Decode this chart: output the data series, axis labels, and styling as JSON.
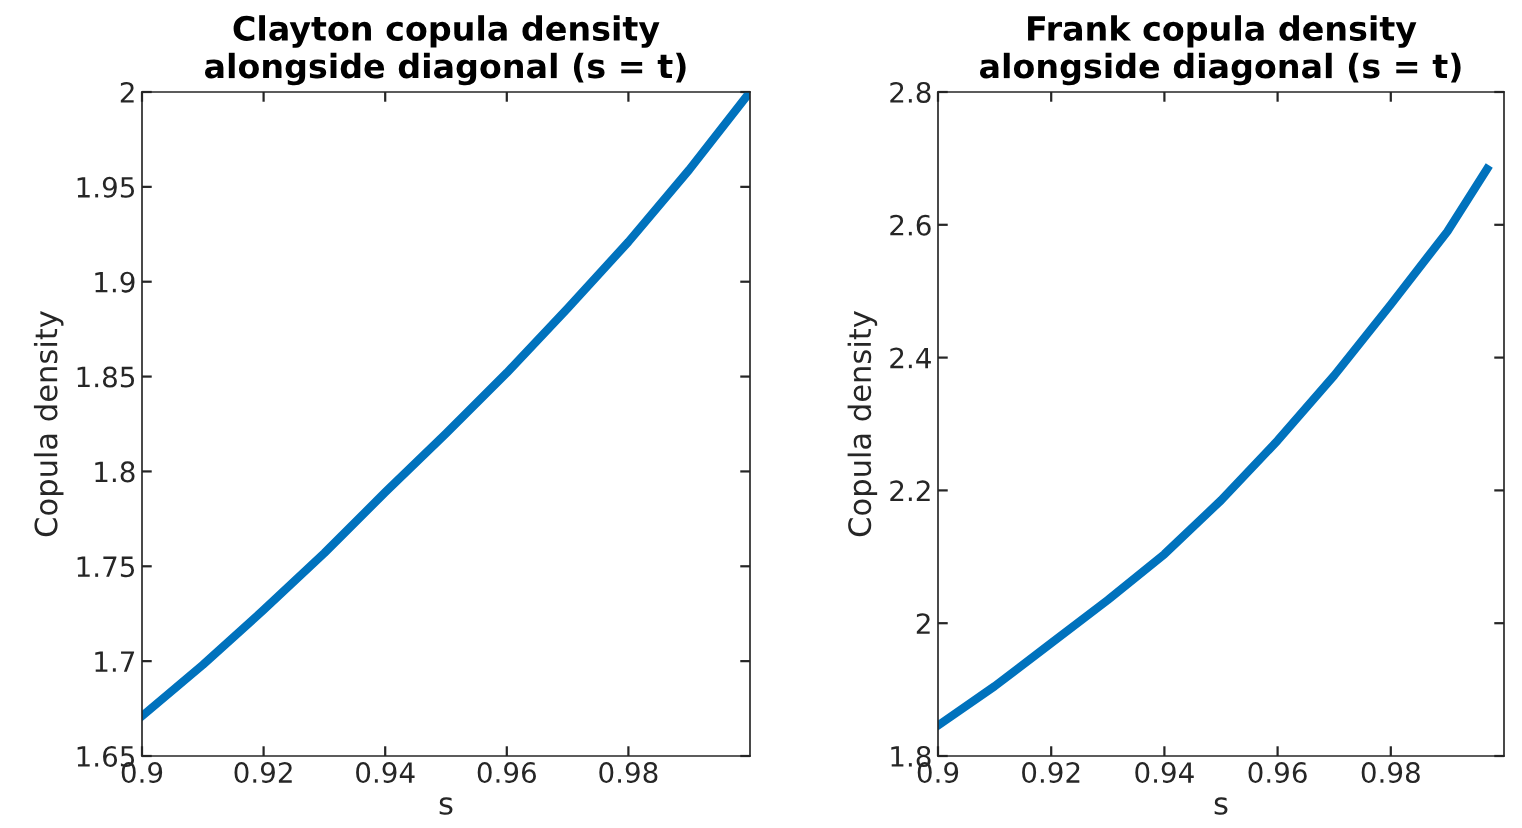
{
  "chart_data": [
    {
      "type": "line",
      "title": "Clayton copula density\nalongside diagonal (s = t)",
      "xlabel": "s",
      "ylabel": "Copula density",
      "x": [
        0.9,
        0.91,
        0.92,
        0.93,
        0.94,
        0.95,
        0.96,
        0.97,
        0.98,
        0.99,
        1.0
      ],
      "series": [
        {
          "color": "#0072bd",
          "values": [
            1.671,
            1.698,
            1.727,
            1.757,
            1.789,
            1.82,
            1.852,
            1.886,
            1.921,
            1.959,
            2.0
          ]
        }
      ],
      "xlim": [
        0.9,
        1.0
      ],
      "xticks": [
        0.9,
        0.92,
        0.94,
        0.96,
        0.98
      ],
      "ylim": [
        1.65,
        2.0
      ],
      "yticks": [
        1.65,
        1.7,
        1.75,
        1.8,
        1.85,
        1.9,
        1.95,
        2
      ],
      "grid": false,
      "legend": false
    },
    {
      "type": "line",
      "title": "Frank copula density\nalongside diagonal (s = t)",
      "xlabel": "s",
      "ylabel": "Copula density",
      "x": [
        0.9,
        0.91,
        0.92,
        0.93,
        0.94,
        0.95,
        0.96,
        0.97,
        0.98,
        0.99,
        0.997
      ],
      "series": [
        {
          "color": "#0072bd",
          "values": [
            1.846,
            1.905,
            1.97,
            2.035,
            2.104,
            2.185,
            2.275,
            2.373,
            2.48,
            2.59,
            2.684
          ]
        }
      ],
      "xlim": [
        0.9,
        1.0
      ],
      "xticks": [
        0.9,
        0.92,
        0.94,
        0.96,
        0.98
      ],
      "ylim": [
        1.8,
        2.8
      ],
      "yticks": [
        1.8,
        2,
        2.2,
        2.4,
        2.6,
        2.8
      ],
      "grid": false,
      "legend": false
    }
  ]
}
